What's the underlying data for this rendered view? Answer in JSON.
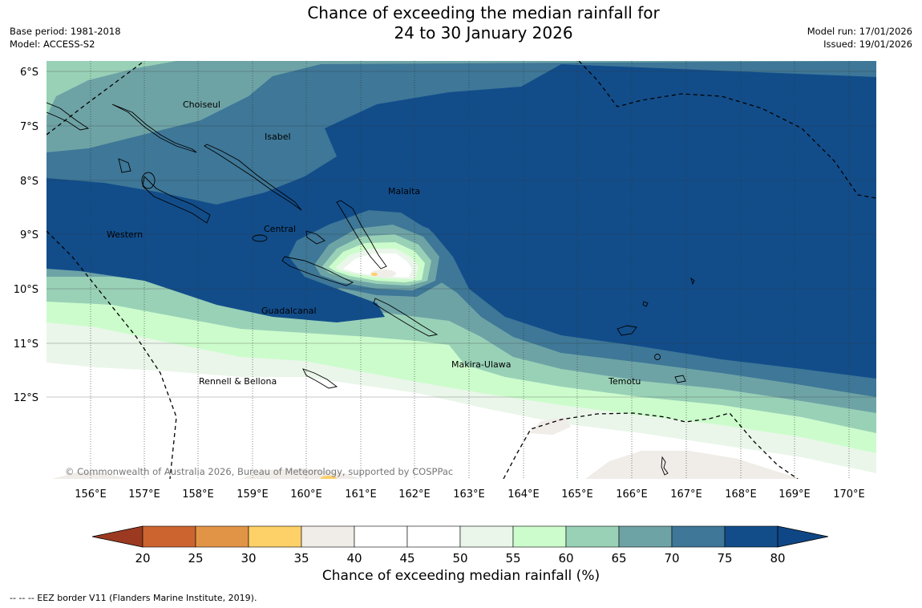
{
  "title": {
    "line1": "Chance of exceeding the median rainfall for",
    "line2": "24 to 30 January 2026"
  },
  "meta_left": {
    "base_period": "Base period: 1981-2018",
    "model": "Model: ACCESS-S2"
  },
  "meta_right": {
    "model_run": "Model run: 17/01/2026",
    "issued": "Issued: 19/01/2026"
  },
  "map": {
    "lon_labels": [
      "156°E",
      "157°E",
      "158°E",
      "159°E",
      "160°E",
      "161°E",
      "162°E",
      "163°E",
      "164°E",
      "165°E",
      "166°E",
      "167°E",
      "168°E",
      "169°E",
      "170°E"
    ],
    "lat_labels": [
      "6°S",
      "7°S",
      "8°S",
      "9°S",
      "10°S",
      "11°S",
      "12°S"
    ],
    "province_labels": [
      "Choiseul",
      "Isabel",
      "Malaita",
      "Central",
      "Western",
      "Guadalcanal",
      "Makira-Ulawa",
      "Rennell & Bellona",
      "Temotu"
    ],
    "copyright": "© Commonwealth of Australia 2026, Bureau of Meteorology, supported by COSPPac"
  },
  "colorbar": {
    "ticks": [
      "20",
      "25",
      "30",
      "35",
      "40",
      "45",
      "50",
      "55",
      "60",
      "65",
      "70",
      "75",
      "80"
    ],
    "colors": [
      "#b34a26",
      "#cc6430",
      "#e29446",
      "#fdd068",
      "#f0ece8",
      "#ffffff",
      "#ffffff",
      "#eaf6ea",
      "#ccfccc",
      "#99d1b7",
      "#6ea3a6",
      "#3e7797",
      "#124d8a"
    ],
    "under_color": "#9b3a20",
    "over_color": "#0f4786",
    "label": "Chance of exceeding median rainfall (%)"
  },
  "footer": "--  --  -- EEZ border V11 (Flanders Marine Institute, 2019)."
}
